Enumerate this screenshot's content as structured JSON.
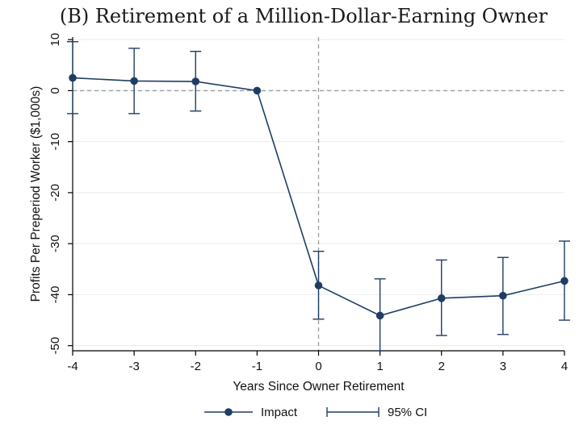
{
  "chart_data": {
    "type": "line",
    "title": "(B) Retirement of a Million-Dollar-Earning Owner",
    "xlabel": "Years Since Owner Retirement",
    "ylabel": "Profits Per Preperiod Worker ($1,000s)",
    "x": [
      -4,
      -3,
      -2,
      -1,
      0,
      1,
      2,
      3,
      4
    ],
    "xticks": [
      "-4",
      "-3",
      "-2",
      "-1",
      "0",
      "1",
      "2",
      "3",
      "4"
    ],
    "yticks": [
      "10",
      "0",
      "-10",
      "-20",
      "-30",
      "-40",
      "-50"
    ],
    "xlim": [
      -4,
      4
    ],
    "ylim": [
      -51,
      10.5
    ],
    "grid": "horizontal",
    "reference_lines": {
      "y": 0,
      "x": 0
    },
    "series": [
      {
        "name": "Impact",
        "values": [
          2.5,
          1.9,
          1.8,
          0,
          -38.2,
          -44.1,
          -40.7,
          -40.2,
          -37.3
        ],
        "ci_low": [
          -4.5,
          -4.5,
          -4.0,
          0,
          -44.8,
          -51.0,
          -48.0,
          -47.8,
          -45.0
        ],
        "ci_high": [
          9.6,
          8.3,
          7.7,
          0,
          -31.5,
          -36.9,
          -33.2,
          -32.7,
          -29.5
        ],
        "color": "#1f3d63"
      }
    ],
    "legend": {
      "position": "bottom",
      "items": [
        "Impact",
        "95% CI"
      ]
    }
  }
}
